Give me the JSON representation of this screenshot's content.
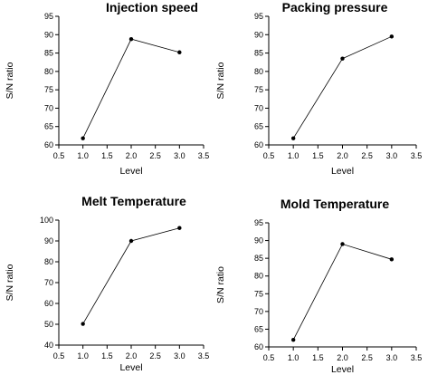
{
  "chart_data": [
    {
      "type": "line",
      "title": "Injection speed",
      "xlabel": "Level",
      "ylabel": "S/N ratio",
      "xlim": [
        0.5,
        3.5
      ],
      "ylim": [
        60,
        95
      ],
      "xticks": [
        "0.5",
        "1.0",
        "1.5",
        "2.0",
        "2.5",
        "3.0",
        "3.5"
      ],
      "yticks": [
        "60",
        "65",
        "70",
        "75",
        "80",
        "85",
        "90",
        "95"
      ],
      "x": [
        1,
        2,
        3
      ],
      "y": [
        61.8,
        88.8,
        85.2
      ]
    },
    {
      "type": "line",
      "title": "Packing pressure",
      "xlabel": "Level",
      "ylabel": "S/N ratio",
      "xlim": [
        0.5,
        3.5
      ],
      "ylim": [
        60,
        95
      ],
      "xticks": [
        "0.5",
        "1.0",
        "1.5",
        "2.0",
        "2.5",
        "3.0",
        "3.5"
      ],
      "yticks": [
        "60",
        "65",
        "70",
        "75",
        "80",
        "85",
        "90",
        "95"
      ],
      "x": [
        1,
        2,
        3
      ],
      "y": [
        61.8,
        83.5,
        89.5
      ]
    },
    {
      "type": "line",
      "title": "Melt Temperature",
      "xlabel": "Level",
      "ylabel": "S/N ratio",
      "xlim": [
        0.5,
        3.5
      ],
      "ylim": [
        40,
        100
      ],
      "xticks": [
        "0.5",
        "1.0",
        "1.5",
        "2.0",
        "2.5",
        "3.0",
        "3.5"
      ],
      "yticks": [
        "40",
        "50",
        "60",
        "70",
        "80",
        "90",
        "100"
      ],
      "x": [
        1,
        2,
        3
      ],
      "y": [
        50.2,
        90.0,
        96.2
      ]
    },
    {
      "type": "line",
      "title": "Mold Temperature",
      "xlabel": "Level",
      "ylabel": "S/N ratio",
      "xlim": [
        0.5,
        3.5
      ],
      "ylim": [
        60,
        95
      ],
      "xticks": [
        "0.5",
        "1.0",
        "1.5",
        "2.0",
        "2.5",
        "3.0",
        "3.5"
      ],
      "yticks": [
        "60",
        "65",
        "70",
        "75",
        "80",
        "85",
        "90",
        "95"
      ],
      "x": [
        1,
        2,
        3
      ],
      "y": [
        62.0,
        89.0,
        84.7
      ]
    }
  ]
}
